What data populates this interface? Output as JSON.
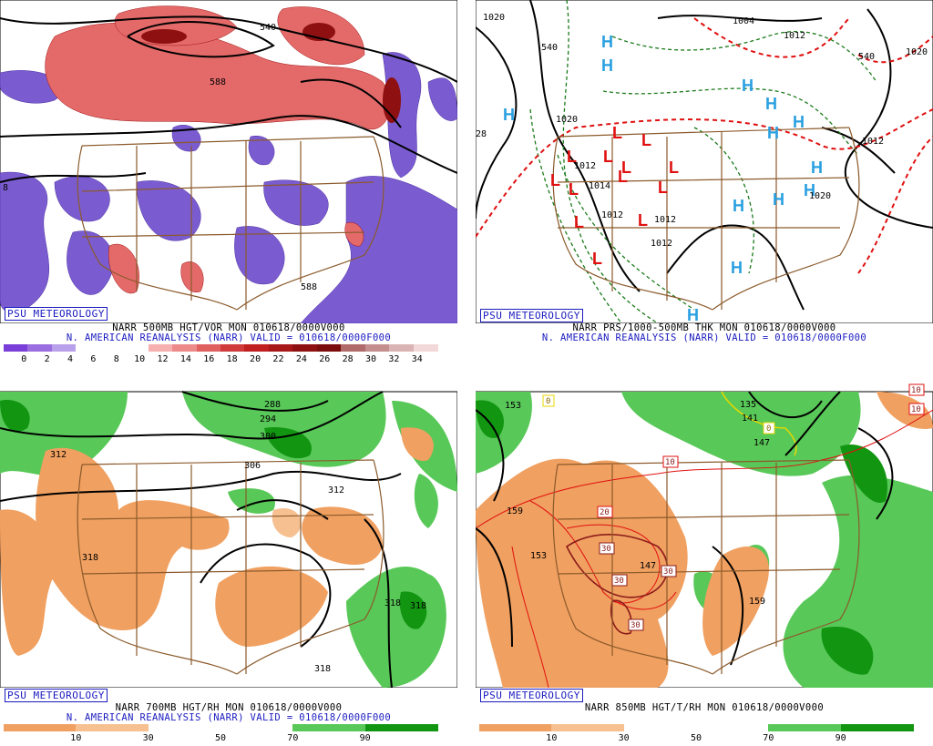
{
  "panels": [
    {
      "id": "tl",
      "badge": "PSU METEOROLOGY",
      "line1": "NARR 500MB HGT/VOR MON 010618/0000V000",
      "line2": "N. AMERICAN REANALYSIS (NARR) VALID = 010618/0000F000",
      "contour_labels": [
        "540",
        "588",
        "588",
        "8"
      ],
      "colorbar": {
        "ticks": [
          "0",
          "2",
          "4",
          "6",
          "8",
          "10",
          "12",
          "14",
          "16",
          "18",
          "20",
          "22",
          "24",
          "26",
          "28",
          "30",
          "32",
          "34"
        ],
        "colors": [
          "#7a3fd8",
          "#9a6ee0",
          "#b9a0ea",
          "#ffffff",
          "#ffffff",
          "#ffffff",
          "#f6b0b0",
          "#ec8a8a",
          "#e06060",
          "#d03a3a",
          "#c02020",
          "#a81818",
          "#8e1010",
          "#7a0c0c",
          "#b06a6a",
          "#c58e8e",
          "#dab4b4",
          "#f2d8d8"
        ]
      }
    },
    {
      "id": "tr",
      "badge": "PSU METEOROLOGY",
      "line1": "NARR PRS/1000-500MB THK MON 010618/0000V000",
      "line2": "N. AMERICAN REANALYSIS (NARR) VALID = 010618/0000F000",
      "contour_labels": [
        "1020",
        "1004",
        "1012",
        "540",
        "540",
        "1020",
        "1020",
        "1012",
        "1012",
        "1012",
        "1012",
        "28",
        "1020",
        "1012",
        "1014"
      ],
      "high_symbol": "H",
      "low_symbol": "L"
    },
    {
      "id": "bl",
      "badge": "PSU METEOROLOGY",
      "line1": "NARR 700MB HGT/RH MON 010618/0000V000",
      "line2": "N. AMERICAN REANALYSIS (NARR) VALID = 010618/0000F000",
      "contour_labels": [
        "288",
        "294",
        "300",
        "306",
        "312",
        "312",
        "318",
        "318",
        "318",
        "318"
      ],
      "colorbar": {
        "ticks": [
          "10",
          "30",
          "50",
          "70",
          "90"
        ],
        "colors": [
          "#f0a060",
          "#f6c090",
          "#ffffff",
          "#ffffff",
          "#58c858",
          "#129612"
        ]
      }
    },
    {
      "id": "br",
      "badge": "PSU METEOROLOGY",
      "line1": "NARR 850MB HGT/T/RH MON 010618/0000V000",
      "line2": "",
      "contour_labels": [
        "153",
        "135",
        "141",
        "147",
        "159",
        "153",
        "147",
        "159"
      ],
      "temp_labels": [
        "0",
        "10",
        "10",
        "20",
        "30",
        "30",
        "30",
        "30",
        "0",
        "10"
      ],
      "colorbar": {
        "ticks": [
          "10",
          "30",
          "50",
          "70",
          "90"
        ],
        "colors": [
          "#f0a060",
          "#f6c090",
          "#ffffff",
          "#ffffff",
          "#58c858",
          "#129612"
        ]
      }
    }
  ]
}
